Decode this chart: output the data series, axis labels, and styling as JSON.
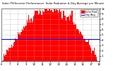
{
  "title": "Solar Radiation & Day Average per Minute",
  "subtitle": "Solar PV/Inverter Performance",
  "bar_color": "#ff0000",
  "avg_line_color": "#0000ff",
  "background_color": "#ffffff",
  "plot_bg_color": "#ffffff",
  "grid_color": "#aaaaaa",
  "text_color": "#000000",
  "ylim": [
    0,
    1000
  ],
  "avg_value": 420,
  "num_bars": 120,
  "peak_value": 980,
  "legend_solar": "Solar Rad.",
  "legend_avg": "Day Avg",
  "y_tick_labels": [
    "1",
    "2",
    "3",
    "4",
    "5",
    "6",
    "7",
    "8",
    "9",
    "1k"
  ],
  "x_tick_labels": [
    "6",
    "7",
    "8",
    "9",
    "10",
    "11",
    "12",
    "13",
    "14",
    "15",
    "16",
    "17",
    "18"
  ]
}
